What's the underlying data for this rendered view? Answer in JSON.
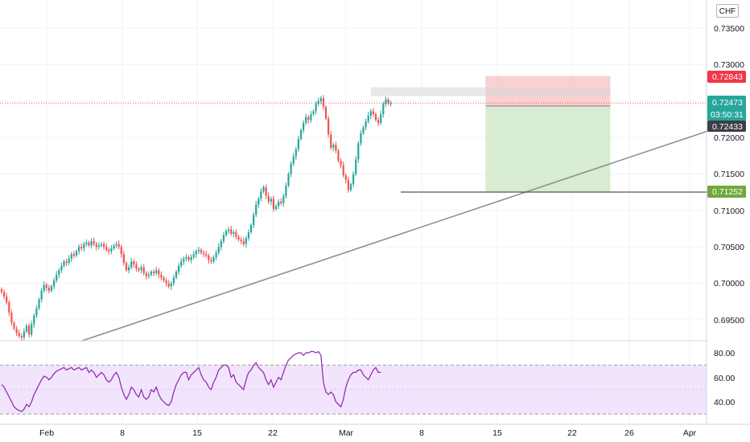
{
  "currency_button": "CHF",
  "colors": {
    "up": "#26a69a",
    "down": "#ef5350",
    "trendline": "#8a8a8a",
    "rsi_line": "#8e24aa",
    "rsi_band": "#f1e4fc",
    "stop_zone": "#f9c8c8",
    "target_zone": "#d7ecd0",
    "price_line": "#ef5350"
  },
  "price_axis": {
    "ticks": [
      "0.73500",
      "0.73000",
      "0.72000",
      "0.71500",
      "0.71000",
      "0.70500",
      "0.70000",
      "0.69500"
    ],
    "tags": {
      "stop_price": "0.72843",
      "last_price": "0.72473",
      "countdown": "03:50:31",
      "entry_price": "0.72433",
      "target_price": "0.71252"
    }
  },
  "rsi_axis": {
    "ticks": [
      "80.00",
      "60.00",
      "40.00"
    ]
  },
  "time_axis": {
    "ticks": [
      "Feb",
      "8",
      "15",
      "22",
      "Mar",
      "8",
      "15",
      "22",
      "26",
      "Apr"
    ]
  },
  "chart_data": [
    {
      "type": "candlestick",
      "title": "",
      "ylim": [
        0.6925,
        0.7375
      ],
      "grid": true,
      "price_ticks": [
        0.735,
        0.73,
        0.72,
        0.715,
        0.71,
        0.705,
        0.7,
        0.695
      ],
      "x_ticks": [
        "Feb",
        "8",
        "15",
        "22",
        "Mar",
        "8",
        "15",
        "22",
        "26",
        "Apr"
      ],
      "closes": [
        0.6988,
        0.6982,
        0.6974,
        0.696,
        0.6946,
        0.6938,
        0.6932,
        0.6928,
        0.6926,
        0.6934,
        0.6942,
        0.693,
        0.6944,
        0.6956,
        0.6966,
        0.6978,
        0.699,
        0.6998,
        0.6994,
        0.699,
        0.6996,
        0.7004,
        0.7012,
        0.7018,
        0.7024,
        0.703,
        0.7028,
        0.7034,
        0.704,
        0.7038,
        0.7044,
        0.705,
        0.7048,
        0.7054,
        0.7056,
        0.7052,
        0.7058,
        0.7054,
        0.705,
        0.7052,
        0.7054,
        0.705,
        0.7046,
        0.7044,
        0.7048,
        0.7052,
        0.7054,
        0.705,
        0.704,
        0.7028,
        0.7018,
        0.7022,
        0.703,
        0.7026,
        0.702,
        0.7018,
        0.7022,
        0.7014,
        0.701,
        0.7012,
        0.7016,
        0.7014,
        0.7018,
        0.7012,
        0.7008,
        0.7004,
        0.7,
        0.6996,
        0.7,
        0.7008,
        0.7016,
        0.7024,
        0.703,
        0.7034,
        0.7036,
        0.7032,
        0.7036,
        0.704,
        0.7044,
        0.7046,
        0.7042,
        0.704,
        0.7038,
        0.7032,
        0.703,
        0.7036,
        0.7042,
        0.705,
        0.7058,
        0.7066,
        0.7072,
        0.7074,
        0.7068,
        0.707,
        0.7064,
        0.706,
        0.7058,
        0.7054,
        0.7062,
        0.707,
        0.708,
        0.7094,
        0.7108,
        0.7116,
        0.7126,
        0.7132,
        0.712,
        0.7112,
        0.7116,
        0.7102,
        0.7106,
        0.7112,
        0.711,
        0.712,
        0.7134,
        0.715,
        0.7164,
        0.7174,
        0.7184,
        0.7198,
        0.721,
        0.722,
        0.7228,
        0.7224,
        0.7232,
        0.7236,
        0.7246,
        0.725,
        0.7254,
        0.7242,
        0.7226,
        0.7204,
        0.7186,
        0.719,
        0.7182,
        0.7168,
        0.7162,
        0.7148,
        0.7142,
        0.7128,
        0.7136,
        0.715,
        0.717,
        0.7192,
        0.7206,
        0.7214,
        0.7222,
        0.723,
        0.7236,
        0.7232,
        0.7224,
        0.722,
        0.7232,
        0.7246,
        0.7252,
        0.7247,
        0.7247
      ],
      "trendline": {
        "start": {
          "bar": 32,
          "price": 0.6921
        },
        "end": {
          "bar": 298,
          "price": 0.7226
        }
      },
      "position": {
        "type": "short",
        "start_bar": 194,
        "end_bar": 244,
        "stop": 0.72843,
        "entry": 0.72433,
        "target": 0.71252
      },
      "target_line": {
        "start_bar": 160,
        "end_bar": 298,
        "price": 0.71252
      },
      "resistance_zone": {
        "start_bar": 148,
        "end_bar": 244,
        "top": 0.7269,
        "bottom": 0.7257
      },
      "last_price": 0.72473
    },
    {
      "type": "line",
      "title": "",
      "ylim": [
        30,
        86
      ],
      "ticks": [
        80,
        60,
        40
      ],
      "band": [
        30,
        70
      ],
      "values": [
        54,
        52,
        48,
        44,
        40,
        36,
        34,
        33,
        32,
        34,
        38,
        36,
        40,
        46,
        50,
        54,
        58,
        61,
        60,
        58,
        60,
        63,
        65,
        66,
        67,
        68,
        66,
        67,
        68,
        66,
        67,
        68,
        66,
        67,
        68,
        64,
        66,
        64,
        60,
        62,
        64,
        62,
        58,
        56,
        58,
        62,
        64,
        60,
        52,
        46,
        42,
        46,
        52,
        50,
        46,
        44,
        50,
        44,
        42,
        44,
        50,
        48,
        52,
        46,
        42,
        40,
        38,
        37,
        40,
        48,
        54,
        58,
        62,
        64,
        64,
        58,
        62,
        64,
        66,
        68,
        62,
        58,
        56,
        52,
        50,
        56,
        60,
        66,
        68,
        70,
        70,
        68,
        60,
        62,
        56,
        54,
        52,
        50,
        58,
        64,
        66,
        70,
        72,
        68,
        66,
        64,
        58,
        54,
        58,
        52,
        56,
        60,
        58,
        64,
        70,
        74,
        76,
        78,
        79,
        80,
        80,
        78,
        80,
        80,
        81,
        81,
        80,
        81,
        78,
        56,
        48,
        46,
        48,
        46,
        40,
        38,
        36,
        42,
        52,
        58,
        62,
        64,
        64,
        66,
        66,
        62,
        60,
        58,
        62,
        66,
        68,
        64,
        64
      ]
    }
  ]
}
